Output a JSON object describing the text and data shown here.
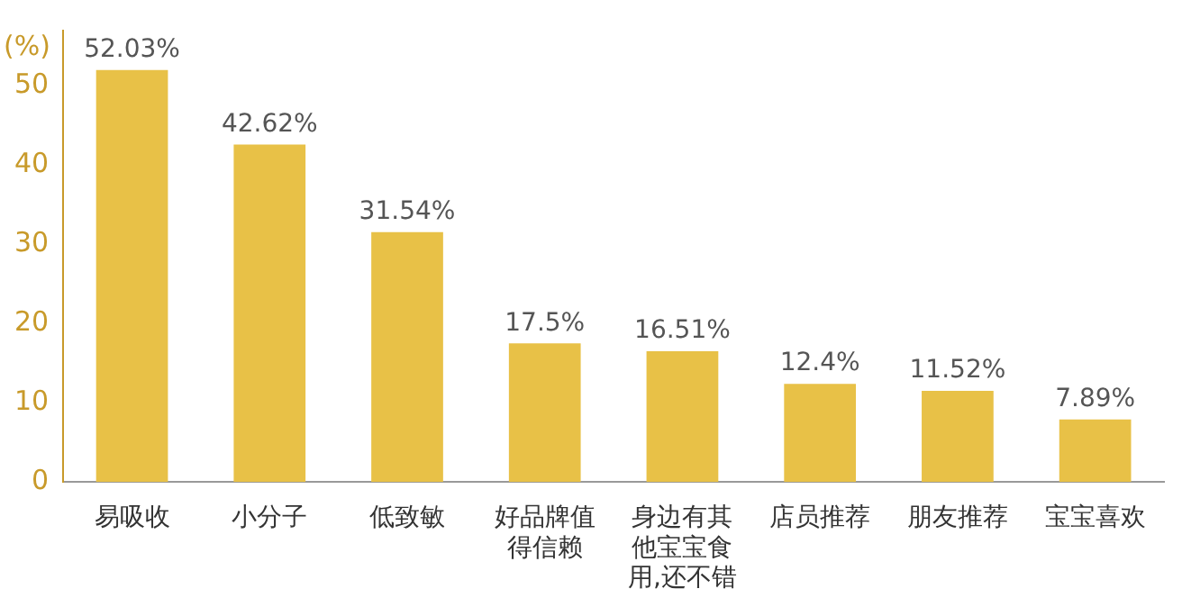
{
  "chart_data": {
    "type": "bar",
    "ylabel": "(%)",
    "categories": [
      "易吸收",
      "小分子",
      "低致敏",
      "好品牌值得信赖",
      "身边有其他宝宝食用,还不错",
      "店员推荐",
      "朋友推荐",
      "宝宝喜欢"
    ],
    "values": [
      52.03,
      42.62,
      31.54,
      17.5,
      16.51,
      12.4,
      11.52,
      7.89
    ],
    "value_labels": [
      "52.03%",
      "42.62%",
      "31.54%",
      "17.5%",
      "16.51%",
      "12.4%",
      "11.52%",
      "7.89%"
    ],
    "color": "#e8c147",
    "ylim": [
      0,
      57
    ],
    "yticks": [
      0,
      10,
      20,
      30,
      40,
      50
    ],
    "grid": false,
    "legend": false
  }
}
